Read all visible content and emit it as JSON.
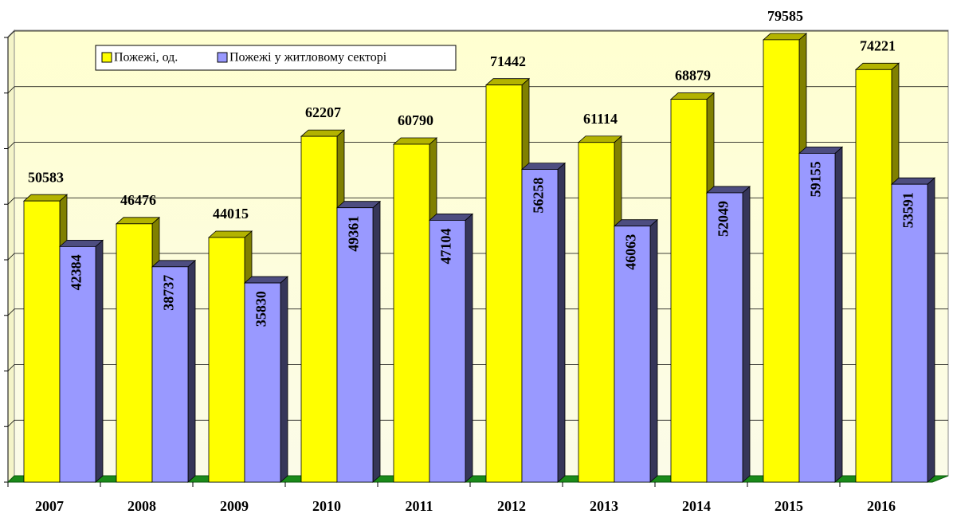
{
  "chart_data": {
    "type": "bar3d",
    "categories": [
      "2007",
      "2008",
      "2009",
      "2010",
      "2011",
      "2012",
      "2013",
      "2014",
      "2015",
      "2016"
    ],
    "series": [
      {
        "name": "Пожежі, од.",
        "color": "#ffff00",
        "values": [
          50583,
          46476,
          44015,
          62207,
          60790,
          71442,
          61114,
          68879,
          79585,
          74221
        ]
      },
      {
        "name": "Пожежі у житловому секторі",
        "color": "#9999ff",
        "values": [
          42384,
          38737,
          35830,
          49361,
          47104,
          56258,
          46063,
          52049,
          59155,
          53591
        ]
      }
    ],
    "ylim": [
      0,
      80000
    ],
    "yticks": [
      0,
      10000,
      20000,
      30000,
      40000,
      50000,
      60000,
      70000,
      80000
    ],
    "grid": true
  }
}
